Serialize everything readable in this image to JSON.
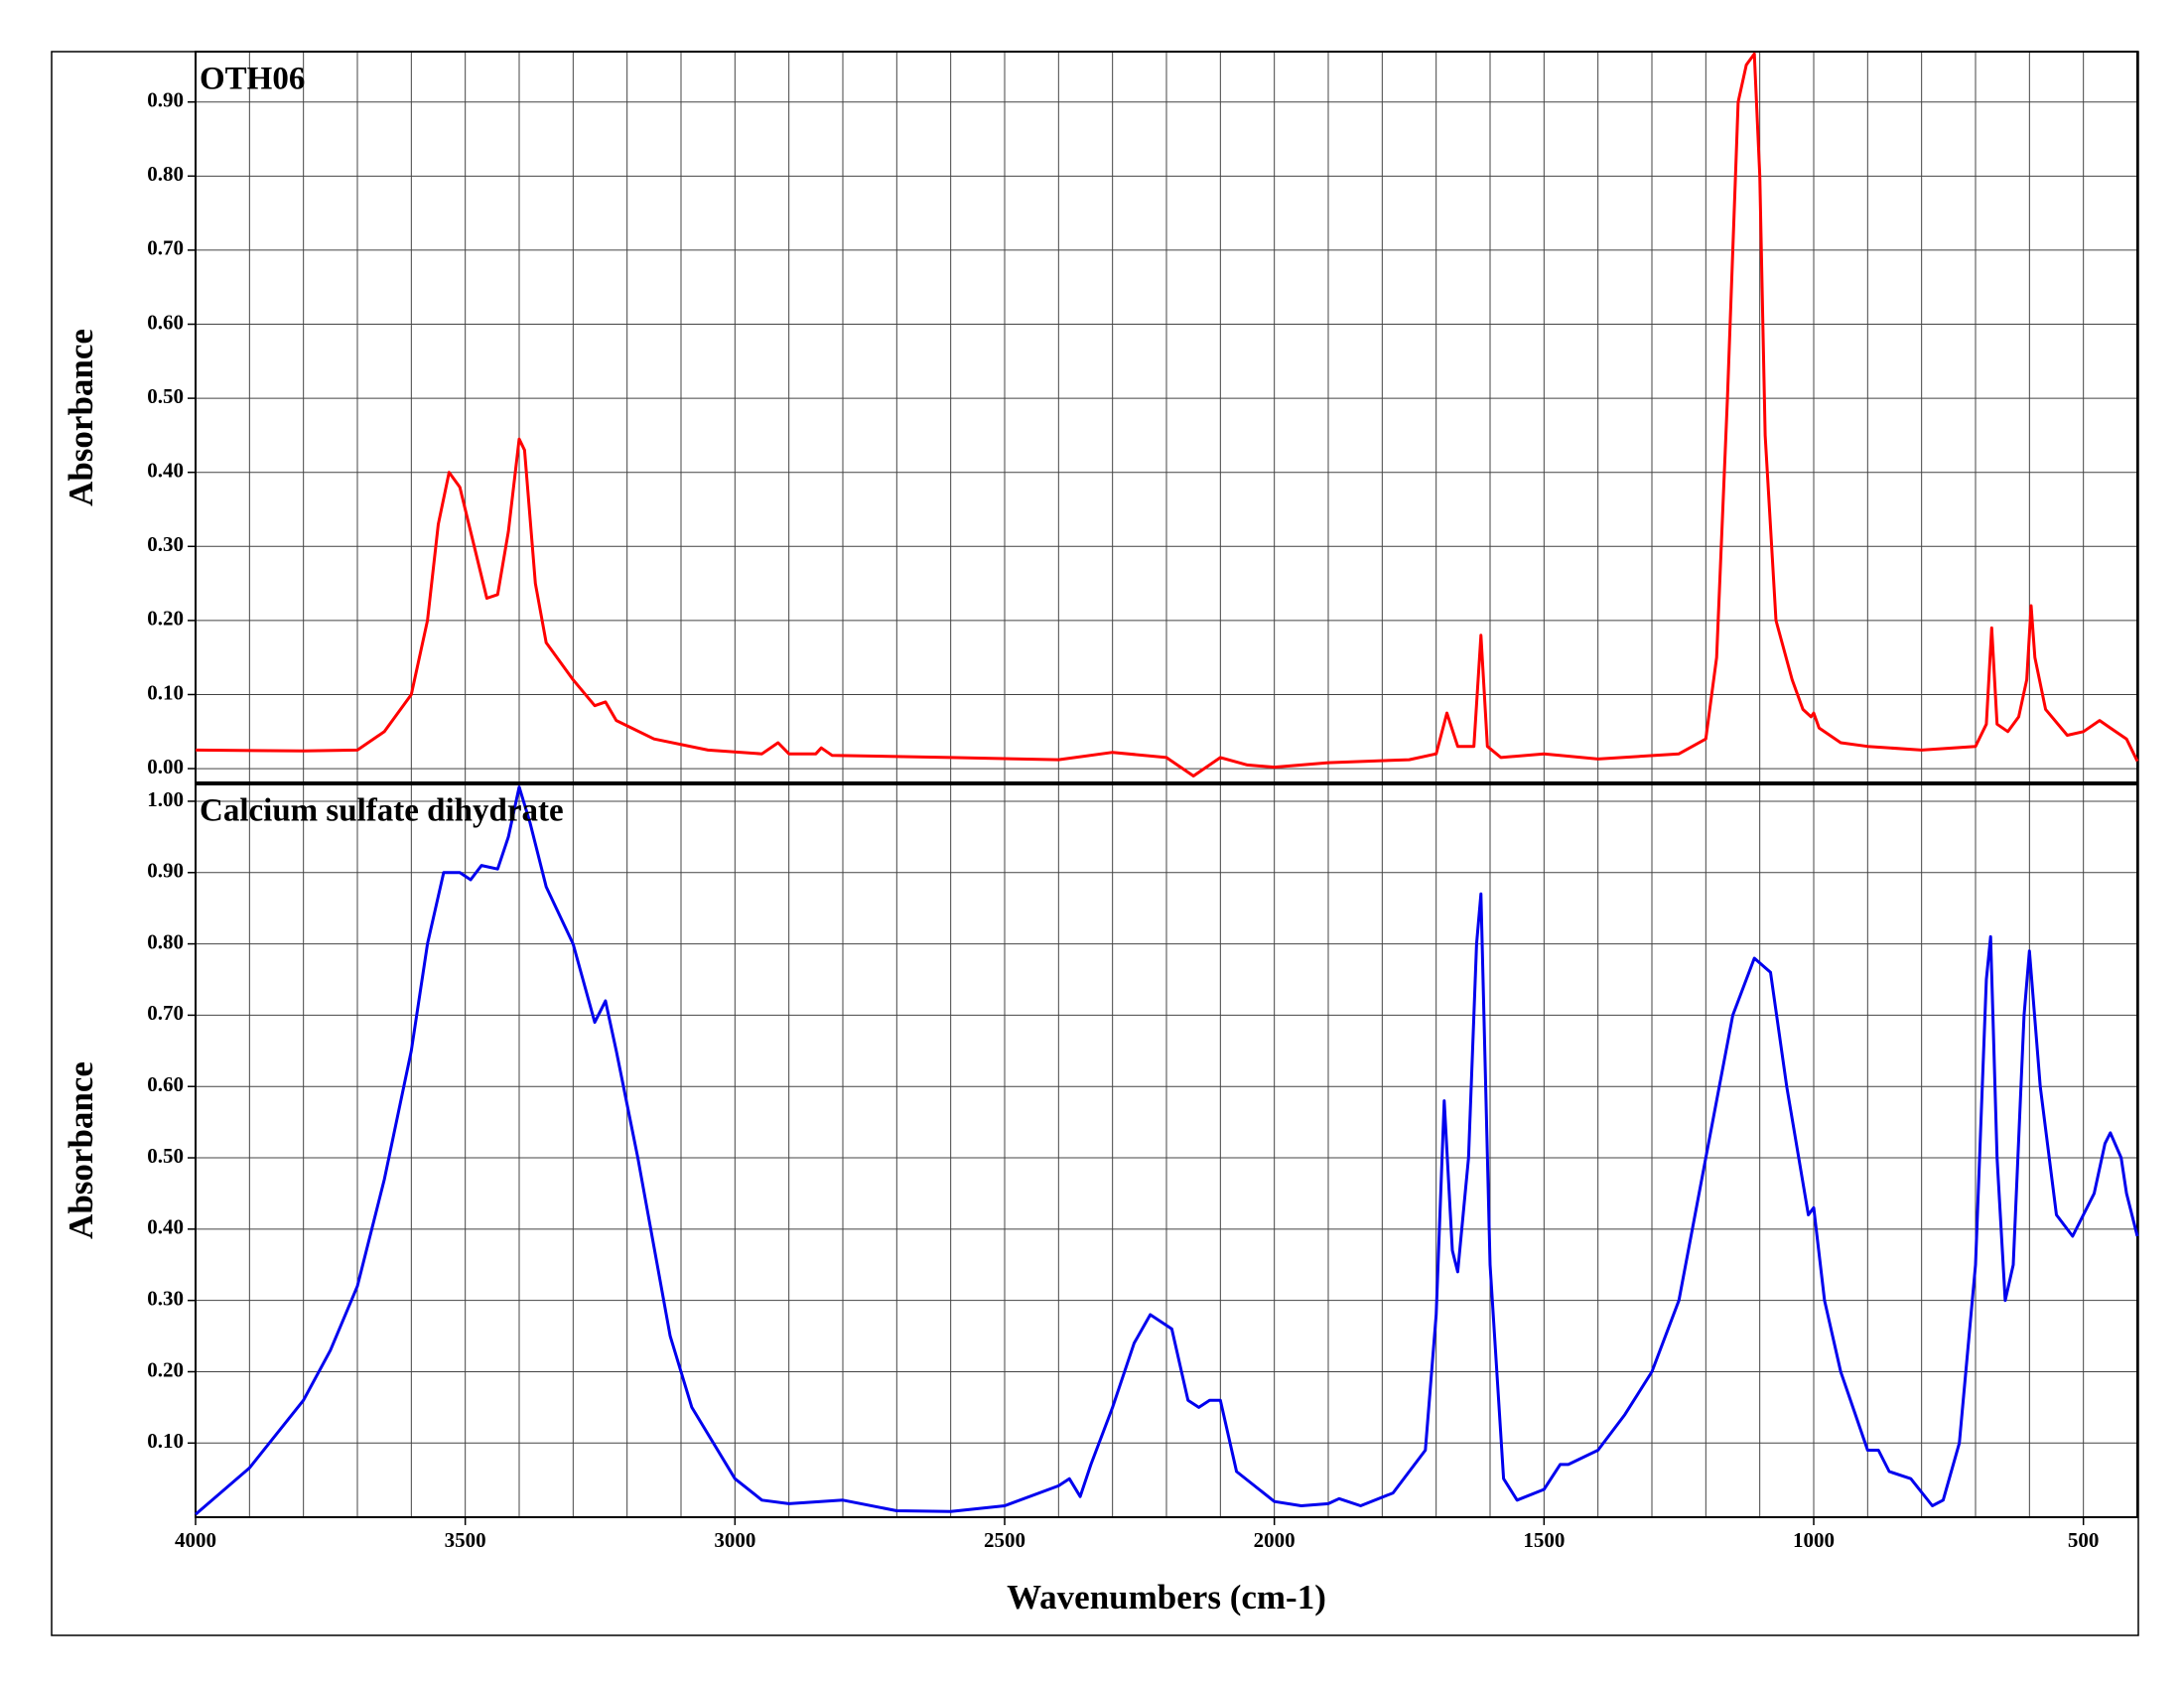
{
  "chart_data": [
    {
      "type": "line",
      "title": "OTH06",
      "ylabel": "Absorbance",
      "color": "#ff0000",
      "xlim": [
        4000,
        400
      ],
      "ylim": [
        -0.02,
        0.968
      ],
      "yticks": [
        {
          "value": 0,
          "label": "0.00"
        },
        {
          "value": 0.1,
          "label": "0.10"
        },
        {
          "value": 0.2,
          "label": "0.20"
        },
        {
          "value": 0.3,
          "label": "0.30"
        },
        {
          "value": 0.4,
          "label": "0.40"
        },
        {
          "value": 0.5,
          "label": "0.50"
        },
        {
          "value": 0.6,
          "label": "0.60"
        },
        {
          "value": 0.7,
          "label": "0.70"
        },
        {
          "value": 0.8,
          "label": "0.80"
        },
        {
          "value": 0.9,
          "label": "0.90"
        }
      ],
      "xgrid": [
        4000,
        3900,
        3800,
        3700,
        3600,
        3500,
        3400,
        3300,
        3200,
        3100,
        3000,
        2900,
        2800,
        2700,
        2600,
        2500,
        2400,
        2300,
        2200,
        2100,
        2000,
        1900,
        1800,
        1700,
        1600,
        1500,
        1400,
        1300,
        1200,
        1100,
        1000,
        900,
        800,
        700,
        600,
        500,
        400
      ],
      "x": [
        4000,
        3800,
        3700,
        3650,
        3600,
        3570,
        3550,
        3530,
        3510,
        3490,
        3460,
        3440,
        3420,
        3400,
        3390,
        3370,
        3350,
        3300,
        3260,
        3240,
        3220,
        3150,
        3050,
        2950,
        2920,
        2900,
        2850,
        2840,
        2820,
        2600,
        2400,
        2300,
        2200,
        2150,
        2100,
        2050,
        2000,
        1900,
        1750,
        1700,
        1680,
        1660,
        1630,
        1617,
        1605,
        1580,
        1500,
        1400,
        1250,
        1200,
        1180,
        1160,
        1140,
        1125,
        1110,
        1100,
        1090,
        1070,
        1040,
        1020,
        1005,
        1000,
        990,
        950,
        900,
        800,
        700,
        680,
        670,
        660,
        640,
        620,
        605,
        597,
        590,
        570,
        530,
        500,
        470,
        450,
        420,
        400
      ],
      "values": [
        0.025,
        0.024,
        0.025,
        0.05,
        0.1,
        0.2,
        0.33,
        0.4,
        0.38,
        0.32,
        0.23,
        0.235,
        0.32,
        0.445,
        0.43,
        0.25,
        0.17,
        0.12,
        0.085,
        0.09,
        0.065,
        0.04,
        0.025,
        0.02,
        0.035,
        0.02,
        0.02,
        0.028,
        0.018,
        0.015,
        0.012,
        0.022,
        0.015,
        -0.01,
        0.015,
        0.005,
        0.002,
        0.008,
        0.012,
        0.02,
        0.075,
        0.03,
        0.03,
        0.18,
        0.03,
        0.015,
        0.02,
        0.013,
        0.02,
        0.04,
        0.15,
        0.5,
        0.9,
        0.95,
        0.965,
        0.8,
        0.45,
        0.2,
        0.12,
        0.08,
        0.07,
        0.075,
        0.055,
        0.035,
        0.03,
        0.025,
        0.03,
        0.06,
        0.19,
        0.06,
        0.05,
        0.07,
        0.12,
        0.22,
        0.15,
        0.08,
        0.045,
        0.05,
        0.065,
        0.055,
        0.04,
        0.01
      ]
    },
    {
      "type": "line",
      "title": "Calcium sulfate dihydrate",
      "ylabel": "Absorbance",
      "xlabel": "Wavenumbers (cm-1)",
      "color": "#0000ee",
      "xlim": [
        4000,
        400
      ],
      "ylim": [
        -0.004,
        1.025
      ],
      "xticks": [
        4000,
        3500,
        3000,
        2500,
        2000,
        1500,
        1000,
        500
      ],
      "yticks": [
        {
          "value": 0.1,
          "label": "0.10"
        },
        {
          "value": 0.2,
          "label": "0.20"
        },
        {
          "value": 0.3,
          "label": "0.30"
        },
        {
          "value": 0.4,
          "label": "0.40"
        },
        {
          "value": 0.5,
          "label": "0.50"
        },
        {
          "value": 0.6,
          "label": "0.60"
        },
        {
          "value": 0.7,
          "label": "0.70"
        },
        {
          "value": 0.8,
          "label": "0.80"
        },
        {
          "value": 0.9,
          "label": "0.90"
        },
        {
          "value": 1,
          "label": "1.00"
        }
      ],
      "xgrid": [
        4000,
        3900,
        3800,
        3700,
        3600,
        3500,
        3400,
        3300,
        3200,
        3100,
        3000,
        2900,
        2800,
        2700,
        2600,
        2500,
        2400,
        2300,
        2200,
        2100,
        2000,
        1900,
        1800,
        1700,
        1600,
        1500,
        1400,
        1300,
        1200,
        1100,
        1000,
        900,
        800,
        700,
        600,
        500,
        400
      ],
      "x": [
        4000,
        3900,
        3800,
        3750,
        3700,
        3650,
        3600,
        3570,
        3540,
        3510,
        3490,
        3470,
        3440,
        3420,
        3400,
        3380,
        3350,
        3300,
        3260,
        3240,
        3220,
        3180,
        3120,
        3080,
        3000,
        2950,
        2900,
        2800,
        2700,
        2600,
        2500,
        2400,
        2380,
        2360,
        2340,
        2300,
        2260,
        2230,
        2190,
        2160,
        2140,
        2120,
        2100,
        2070,
        2000,
        1950,
        1900,
        1880,
        1840,
        1780,
        1720,
        1700,
        1685,
        1670,
        1660,
        1640,
        1625,
        1617,
        1600,
        1575,
        1550,
        1500,
        1470,
        1455,
        1400,
        1350,
        1300,
        1250,
        1200,
        1150,
        1110,
        1080,
        1050,
        1010,
        1000,
        980,
        950,
        900,
        880,
        860,
        820,
        780,
        760,
        730,
        700,
        680,
        672,
        660,
        645,
        630,
        610,
        600,
        580,
        550,
        520,
        480,
        460,
        450,
        430,
        420,
        400
      ],
      "values": [
        0,
        0.065,
        0.16,
        0.23,
        0.32,
        0.47,
        0.65,
        0.8,
        0.9,
        0.9,
        0.89,
        0.91,
        0.905,
        0.95,
        1.02,
        0.97,
        0.88,
        0.8,
        0.69,
        0.72,
        0.65,
        0.5,
        0.25,
        0.15,
        0.05,
        0.02,
        0.015,
        0.02,
        0.005,
        0.004,
        0.012,
        0.04,
        0.05,
        0.025,
        0.07,
        0.15,
        0.24,
        0.28,
        0.26,
        0.16,
        0.15,
        0.16,
        0.16,
        0.06,
        0.018,
        0.012,
        0.015,
        0.022,
        0.012,
        0.03,
        0.09,
        0.28,
        0.58,
        0.37,
        0.34,
        0.5,
        0.8,
        0.87,
        0.35,
        0.05,
        0.02,
        0.035,
        0.07,
        0.07,
        0.09,
        0.14,
        0.2,
        0.3,
        0.5,
        0.7,
        0.78,
        0.76,
        0.6,
        0.42,
        0.43,
        0.3,
        0.2,
        0.09,
        0.09,
        0.06,
        0.05,
        0.012,
        0.02,
        0.1,
        0.35,
        0.75,
        0.81,
        0.5,
        0.3,
        0.35,
        0.7,
        0.79,
        0.6,
        0.42,
        0.39,
        0.45,
        0.52,
        0.535,
        0.5,
        0.45,
        0.39
      ]
    }
  ]
}
